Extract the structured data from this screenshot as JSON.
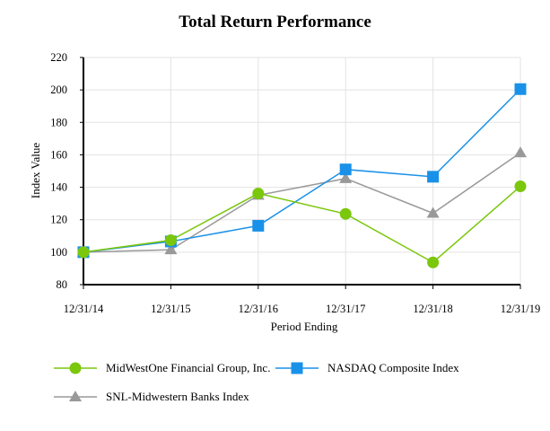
{
  "chart_data": {
    "type": "line",
    "title": "Total Return Performance",
    "xlabel": "Period Ending",
    "ylabel": "Index Value",
    "categories": [
      "12/31/14",
      "12/31/15",
      "12/31/16",
      "12/31/17",
      "12/31/18",
      "12/31/19"
    ],
    "ylim": [
      80,
      220
    ],
    "yticks": [
      80,
      100,
      120,
      140,
      160,
      180,
      200,
      220
    ],
    "grid": true,
    "legend_position": "bottom",
    "series": [
      {
        "name": "MidWestOne Financial Group, Inc.",
        "color": "#7ac70c",
        "marker": "circle",
        "values": [
          100.0,
          107.4,
          136.2,
          123.6,
          93.7,
          140.6
        ]
      },
      {
        "name": "NASDAQ Composite Index",
        "color": "#1a91e8",
        "marker": "square",
        "values": [
          100.0,
          106.6,
          116.3,
          151.0,
          146.5,
          200.5
        ]
      },
      {
        "name": "SNL-Midwestern Banks Index",
        "color": "#999999",
        "marker": "triangle",
        "values": [
          100.0,
          101.5,
          135.1,
          145.4,
          124.0,
          161.3
        ]
      }
    ]
  }
}
